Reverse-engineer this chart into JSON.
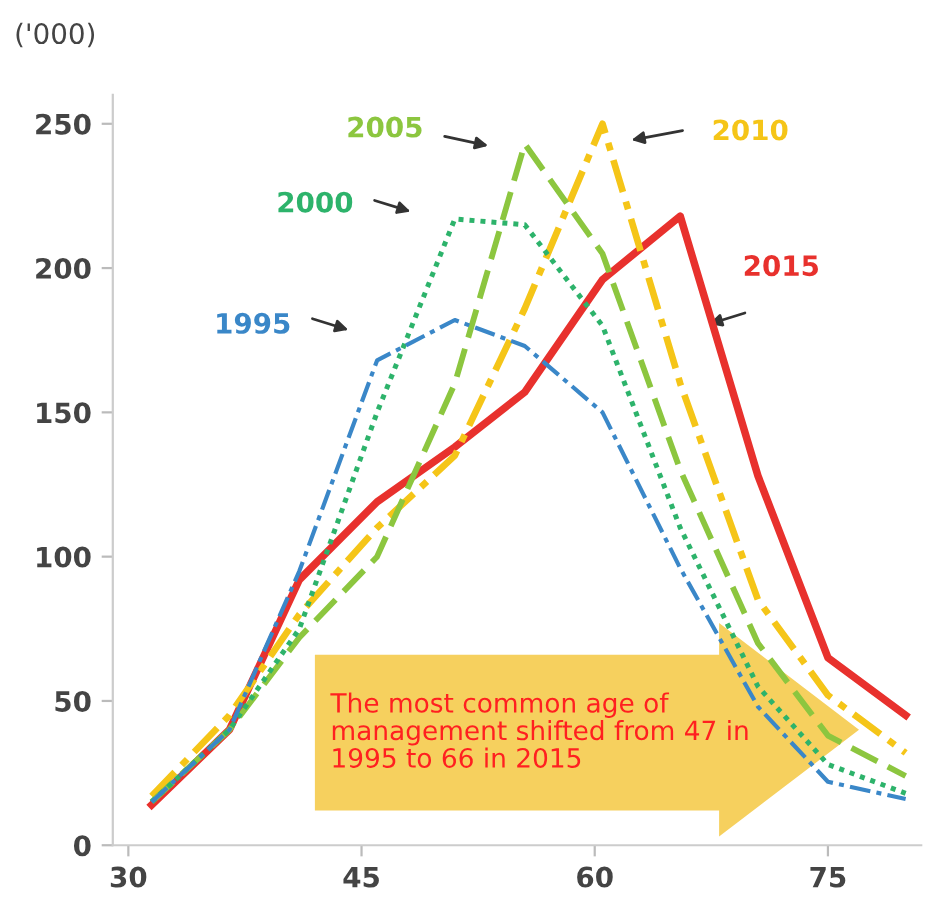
{
  "chart_data": {
    "type": "line",
    "ylabel": "('000)",
    "x": [
      31.5,
      36.5,
      41,
      46,
      51,
      55.5,
      60.5,
      65.5,
      70.5,
      75,
      80
    ],
    "xlim": [
      29,
      81
    ],
    "xticks": [
      30,
      45,
      60,
      75
    ],
    "ylim": [
      0,
      260
    ],
    "yticks": [
      0,
      50,
      100,
      150,
      200,
      250
    ],
    "grid": false,
    "legend": false,
    "series": [
      {
        "name": "1995",
        "color": "#3a87c8",
        "line_style": "dashdot",
        "values": [
          15,
          40,
          95,
          168,
          182,
          173,
          150,
          96,
          48,
          22,
          16
        ]
      },
      {
        "name": "2000",
        "color": "#2db36b",
        "line_style": "dotted",
        "values": [
          15,
          40,
          75,
          150,
          217,
          215,
          180,
          110,
          55,
          28,
          18
        ]
      },
      {
        "name": "2005",
        "color": "#8cc63f",
        "line_style": "dashed",
        "values": [
          15,
          40,
          72,
          100,
          160,
          243,
          205,
          130,
          70,
          38,
          24
        ]
      },
      {
        "name": "2010",
        "color": "#f5c518",
        "line_style": "dashdot",
        "values": [
          17,
          45,
          80,
          110,
          135,
          186,
          250,
          160,
          85,
          52,
          32
        ]
      },
      {
        "name": "2015",
        "color": "#e8312d",
        "line_style": "solid",
        "values": [
          14,
          40,
          92,
          119,
          138,
          157,
          196,
          218,
          128,
          65,
          45
        ]
      }
    ],
    "annotations": [
      "The most common age of management shifted from 47 in 1995 to 66 in 2015"
    ]
  }
}
